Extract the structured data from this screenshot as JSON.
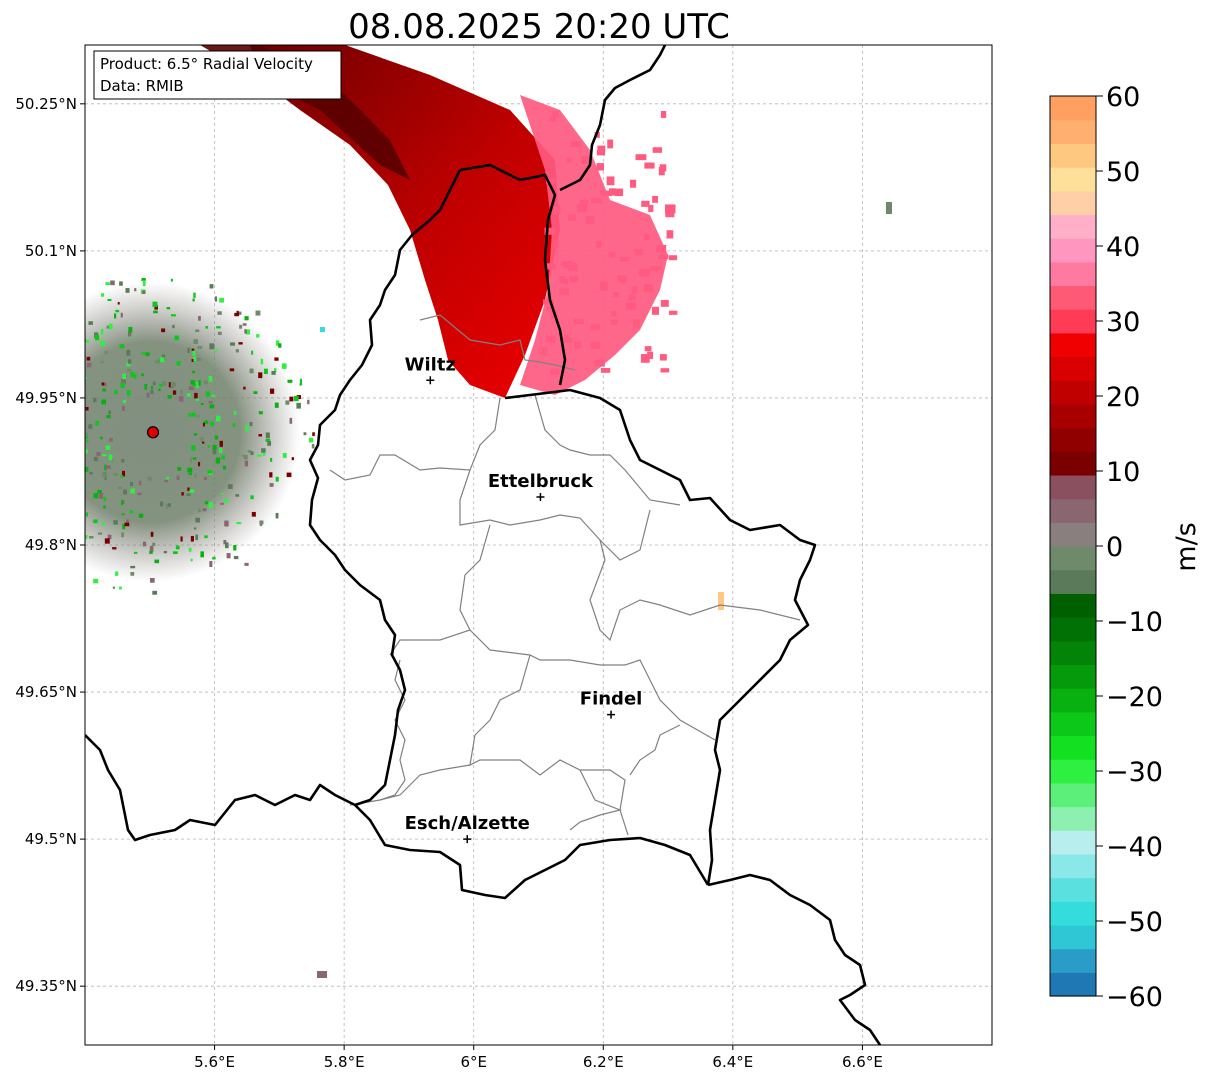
{
  "title": "08.08.2025 20:20 UTC",
  "info_box": {
    "product": "Product: 6.5° Radial Velocity",
    "source": "Data: RMIB"
  },
  "map": {
    "lon_range": [
      5.4,
      6.8
    ],
    "lat_range": [
      49.29,
      50.31
    ],
    "lon_ticks": [
      {
        "value": 5.6,
        "label": "5.6°E"
      },
      {
        "value": 5.8,
        "label": "5.8°E"
      },
      {
        "value": 6.0,
        "label": "6°E"
      },
      {
        "value": 6.2,
        "label": "6.2°E"
      },
      {
        "value": 6.4,
        "label": "6.4°E"
      },
      {
        "value": 6.6,
        "label": "6.6°E"
      }
    ],
    "lat_ticks": [
      {
        "value": 50.25,
        "label": "50.25°N"
      },
      {
        "value": 50.1,
        "label": "50.1°N"
      },
      {
        "value": 49.95,
        "label": "49.95°N"
      },
      {
        "value": 49.8,
        "label": "49.8°N"
      },
      {
        "value": 49.65,
        "label": "49.65°N"
      },
      {
        "value": 49.5,
        "label": "49.5°N"
      },
      {
        "value": 49.35,
        "label": "49.35°N"
      }
    ],
    "radar_site": {
      "lon": 5.505,
      "lat": 49.915
    },
    "cities": [
      {
        "name": "Wiltz",
        "lon": 5.933,
        "lat": 49.968
      },
      {
        "name": "Ettelbruck",
        "lon": 6.103,
        "lat": 49.849
      },
      {
        "name": "Findel",
        "lon": 6.212,
        "lat": 49.627
      },
      {
        "name": "Esch/Alzette",
        "lon": 5.99,
        "lat": 49.5
      }
    ]
  },
  "colorbar": {
    "label": "m/s",
    "min": -60,
    "max": 60,
    "ticks": [
      {
        "value": 60,
        "label": "60"
      },
      {
        "value": 50,
        "label": "50"
      },
      {
        "value": 40,
        "label": "40"
      },
      {
        "value": 30,
        "label": "30"
      },
      {
        "value": 20,
        "label": "20"
      },
      {
        "value": 10,
        "label": "10"
      },
      {
        "value": 0,
        "label": "0"
      },
      {
        "value": -10,
        "label": "−10"
      },
      {
        "value": -20,
        "label": "−20"
      },
      {
        "value": -30,
        "label": "−30"
      },
      {
        "value": -40,
        "label": "−40"
      },
      {
        "value": -50,
        "label": "−50"
      },
      {
        "value": -60,
        "label": "−60"
      }
    ],
    "colors_low_to_high": [
      "#1f77b4",
      "#2a9cc8",
      "#2fc6d6",
      "#34dcdc",
      "#5be0e0",
      "#8be8e8",
      "#b8eeee",
      "#8ef0b0",
      "#5cf07a",
      "#2ef040",
      "#12e020",
      "#0cc818",
      "#08b010",
      "#059a0c",
      "#038408",
      "#017005",
      "#006000",
      "#5a7a5a",
      "#6f8a6a",
      "#8a7f7f",
      "#8a6670",
      "#8a5060",
      "#7a0000",
      "#900000",
      "#a80000",
      "#c00000",
      "#d80000",
      "#f00000",
      "#ff3b55",
      "#ff5a75",
      "#ff7aa0",
      "#ff96c0",
      "#ffb0c8",
      "#ffd0a8",
      "#ffe09a",
      "#ffc880",
      "#ffb070",
      "#ffa060"
    ]
  }
}
